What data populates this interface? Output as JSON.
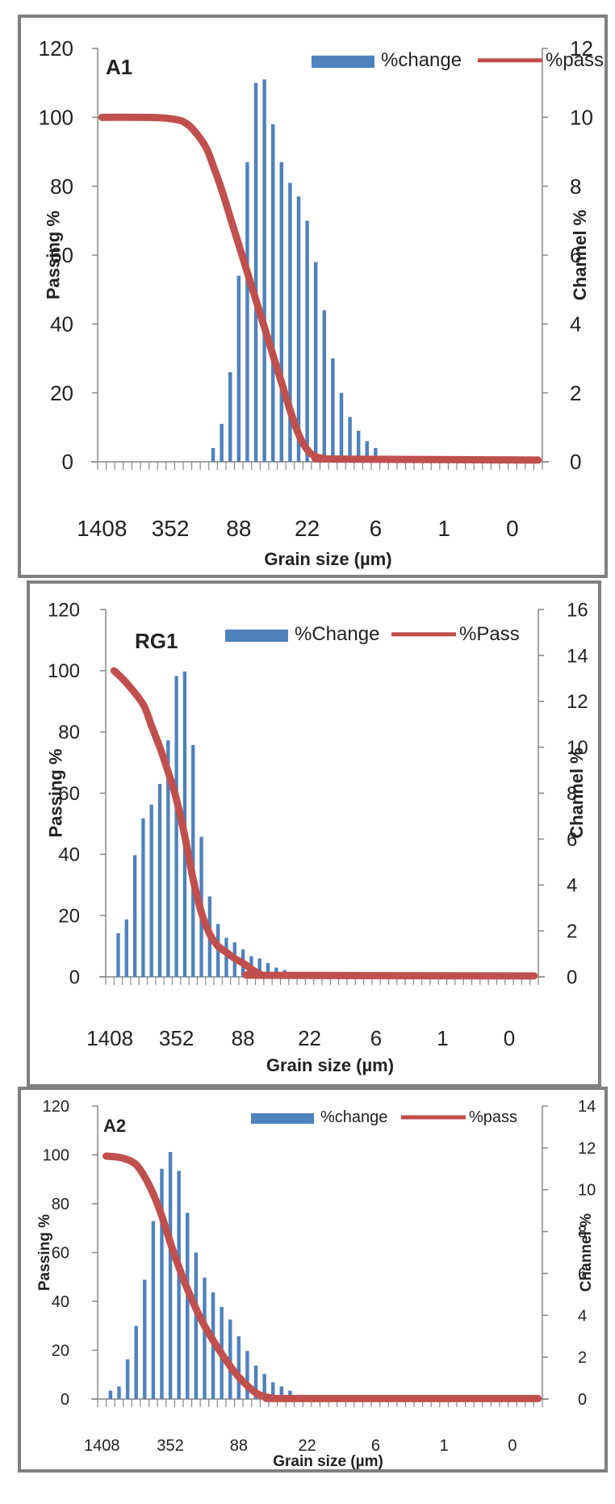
{
  "chart_data": [
    {
      "id": "A1",
      "type": "bar+line",
      "title": "A1",
      "xlabel": "Grain size (µm)",
      "ylabel": "Passing %",
      "y2label": "Channel %",
      "ylim": [
        0,
        120
      ],
      "yticks": [
        0,
        20,
        40,
        60,
        80,
        100,
        120
      ],
      "y2lim": [
        0,
        12
      ],
      "y2ticks": [
        0,
        2,
        4,
        6,
        8,
        10,
        12
      ],
      "n_categories": 52,
      "xtick_labels": [
        {
          "index": 0,
          "label": "1408"
        },
        {
          "index": 8,
          "label": "352"
        },
        {
          "index": 16,
          "label": "88"
        },
        {
          "index": 24,
          "label": "22"
        },
        {
          "index": 32,
          "label": "6"
        },
        {
          "index": 40,
          "label": "1"
        },
        {
          "index": 48,
          "label": "0"
        }
      ],
      "legend": [
        {
          "name": "%change",
          "kind": "bar"
        },
        {
          "name": "%pass",
          "kind": "line"
        }
      ],
      "legend_position": "top-right",
      "bar_series": {
        "name": "%change",
        "axis": "right",
        "start_index": 13,
        "values": [
          0.4,
          1.1,
          2.6,
          5.4,
          8.7,
          11.0,
          11.1,
          9.8,
          8.7,
          8.1,
          7.7,
          7.0,
          5.8,
          4.4,
          3.0,
          2.0,
          1.3,
          0.9,
          0.6,
          0.4
        ]
      },
      "line_series": {
        "name": "%pass",
        "axis": "left",
        "points": [
          [
            0,
            100
          ],
          [
            5,
            100
          ],
          [
            8,
            99.6
          ],
          [
            10,
            98
          ],
          [
            12,
            92
          ],
          [
            13,
            86
          ],
          [
            14,
            79
          ],
          [
            15,
            71
          ],
          [
            16,
            63
          ],
          [
            17,
            55
          ],
          [
            18,
            47
          ],
          [
            19,
            39
          ],
          [
            20,
            31
          ],
          [
            21,
            23
          ],
          [
            22,
            15
          ],
          [
            23,
            8
          ],
          [
            24,
            3.5
          ],
          [
            25,
            1.5
          ],
          [
            26,
            1
          ],
          [
            27,
            0.8
          ],
          [
            51,
            0.5
          ]
        ]
      }
    },
    {
      "id": "RG1",
      "type": "bar+line",
      "title": "RG1",
      "xlabel": "Grain size (µm)",
      "ylabel": "Passing %",
      "y2label": "Channel %",
      "ylim": [
        0,
        120
      ],
      "yticks": [
        0,
        20,
        40,
        60,
        80,
        100,
        120
      ],
      "y2lim": [
        0,
        16
      ],
      "y2ticks": [
        0,
        2,
        4,
        6,
        8,
        10,
        12,
        14,
        16
      ],
      "n_categories": 52,
      "xtick_labels": [
        {
          "index": 0,
          "label": "1408"
        },
        {
          "index": 8,
          "label": "352"
        },
        {
          "index": 16,
          "label": "88"
        },
        {
          "index": 24,
          "label": "22"
        },
        {
          "index": 32,
          "label": "6"
        },
        {
          "index": 40,
          "label": "1"
        },
        {
          "index": 48,
          "label": "0"
        }
      ],
      "legend": [
        {
          "name": "%Change",
          "kind": "bar"
        },
        {
          "name": "%Pass",
          "kind": "line"
        }
      ],
      "legend_position": "top-right",
      "bar_series": {
        "name": "%Change",
        "axis": "right",
        "start_index": 1,
        "values": [
          1.9,
          2.5,
          5.3,
          6.9,
          7.5,
          8.4,
          10.3,
          13.1,
          13.3,
          10.1,
          6.1,
          3.5,
          2.3,
          1.7,
          1.5,
          1.2,
          0.9,
          0.8,
          0.6,
          0.4,
          0.3,
          0.2
        ]
      },
      "line_series": {
        "name": "%Pass",
        "axis": "left",
        "points": [
          [
            0.5,
            100
          ],
          [
            2,
            96
          ],
          [
            4,
            89
          ],
          [
            5,
            82
          ],
          [
            6,
            75
          ],
          [
            7,
            67
          ],
          [
            8,
            58
          ],
          [
            9,
            46
          ],
          [
            10,
            32
          ],
          [
            11,
            21
          ],
          [
            12,
            14
          ],
          [
            13,
            10
          ],
          [
            14,
            8
          ],
          [
            15,
            6
          ],
          [
            16,
            4.5
          ],
          [
            17,
            2.5
          ],
          [
            18,
            1
          ],
          [
            19,
            0.5
          ],
          [
            51,
            0.3
          ]
        ]
      }
    },
    {
      "id": "A2",
      "type": "bar+line",
      "title": "A2",
      "xlabel": "Grain size (µm)",
      "ylabel": "Passing %",
      "y2label": "Channel %",
      "ylim": [
        0,
        120
      ],
      "yticks": [
        0,
        20,
        40,
        60,
        80,
        100,
        120
      ],
      "y2lim": [
        0,
        14
      ],
      "y2ticks": [
        0,
        2,
        4,
        6,
        8,
        10,
        12,
        14
      ],
      "n_categories": 52,
      "xtick_labels": [
        {
          "index": 0,
          "label": "1408"
        },
        {
          "index": 8,
          "label": "352"
        },
        {
          "index": 16,
          "label": "88"
        },
        {
          "index": 24,
          "label": "22"
        },
        {
          "index": 32,
          "label": "6"
        },
        {
          "index": 40,
          "label": "1"
        },
        {
          "index": 48,
          "label": "0"
        }
      ],
      "legend": [
        {
          "name": "%change",
          "kind": "bar"
        },
        {
          "name": "%pass",
          "kind": "line"
        }
      ],
      "legend_position": "top-right",
      "bar_series": {
        "name": "%change",
        "axis": "right",
        "start_index": 1,
        "values": [
          0.4,
          0.6,
          1.9,
          3.5,
          5.7,
          8.5,
          11.0,
          11.8,
          10.9,
          8.9,
          7.0,
          5.8,
          5.1,
          4.4,
          3.8,
          3.0,
          2.3,
          1.6,
          1.2,
          0.8,
          0.6,
          0.4,
          0.2
        ]
      },
      "line_series": {
        "name": "%pass",
        "axis": "left",
        "points": [
          [
            0.5,
            99.5
          ],
          [
            2,
            99
          ],
          [
            3,
            98
          ],
          [
            4,
            96
          ],
          [
            5,
            91
          ],
          [
            6,
            84
          ],
          [
            7,
            75
          ],
          [
            8,
            64
          ],
          [
            9,
            54
          ],
          [
            10,
            45
          ],
          [
            11,
            37
          ],
          [
            12,
            30
          ],
          [
            13,
            24
          ],
          [
            14,
            18.5
          ],
          [
            15,
            13.5
          ],
          [
            16,
            9
          ],
          [
            17,
            5.5
          ],
          [
            18,
            2.5
          ],
          [
            19,
            1
          ],
          [
            20,
            0.4
          ],
          [
            22,
            0.2
          ],
          [
            51,
            0.2
          ]
        ]
      }
    }
  ],
  "colors": {
    "bar": "#4f81bd",
    "line": "#c0504d",
    "axis": "#868686",
    "border": "#7f7f7f",
    "text": "#222222"
  }
}
